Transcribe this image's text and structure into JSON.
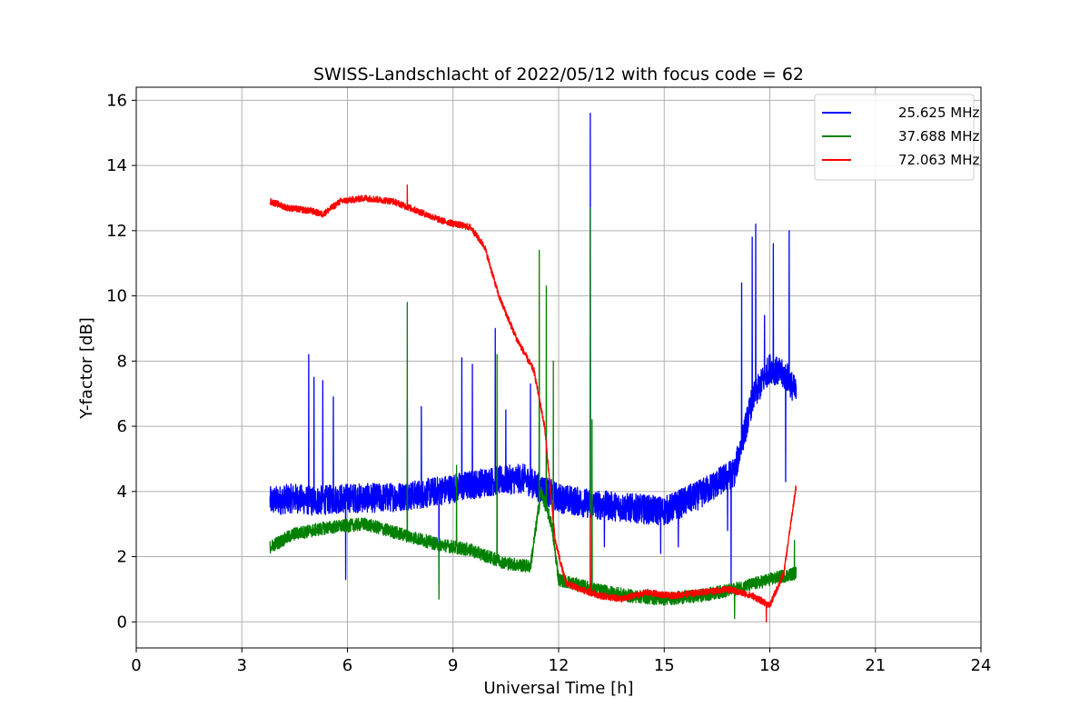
{
  "chart_data": {
    "type": "line",
    "title": "SWISS-Landschlacht of 2022/05/12 with focus code = 62",
    "xlabel": "Universal Time [h]",
    "ylabel": "Y-factor [dB]",
    "xlim": [
      0,
      24
    ],
    "ylim": [
      -0.8,
      16.4
    ],
    "xticks": [
      0,
      3,
      6,
      9,
      12,
      15,
      18,
      21,
      24
    ],
    "yticks": [
      0,
      2,
      4,
      6,
      8,
      10,
      12,
      14,
      16
    ],
    "grid": true,
    "legend_position": "top-right",
    "series": [
      {
        "name": "25.625 MHz",
        "color": "#0000ff",
        "base": [
          [
            3.8,
            3.7
          ],
          [
            4.5,
            3.8
          ],
          [
            5.0,
            3.7
          ],
          [
            6.0,
            3.8
          ],
          [
            7.0,
            3.8
          ],
          [
            8.0,
            3.9
          ],
          [
            9.0,
            4.1
          ],
          [
            10.0,
            4.3
          ],
          [
            11.0,
            4.4
          ],
          [
            12.0,
            3.8
          ],
          [
            13.0,
            3.6
          ],
          [
            14.0,
            3.5
          ],
          [
            15.0,
            3.4
          ],
          [
            16.0,
            3.9
          ],
          [
            17.0,
            4.6
          ],
          [
            17.5,
            6.8
          ],
          [
            18.0,
            7.8
          ],
          [
            18.5,
            7.5
          ],
          [
            18.75,
            7.0
          ]
        ],
        "spikes": [
          [
            4.9,
            8.2
          ],
          [
            5.05,
            7.5
          ],
          [
            5.3,
            7.4
          ],
          [
            5.6,
            6.9
          ],
          [
            5.95,
            1.3
          ],
          [
            7.7,
            6.8
          ],
          [
            8.1,
            6.6
          ],
          [
            8.6,
            1.2
          ],
          [
            9.25,
            8.1
          ],
          [
            9.55,
            7.9
          ],
          [
            10.2,
            9.0
          ],
          [
            10.5,
            6.5
          ],
          [
            11.2,
            7.3
          ],
          [
            11.45,
            6.5
          ],
          [
            12.9,
            15.6
          ],
          [
            13.3,
            2.3
          ],
          [
            14.9,
            2.1
          ],
          [
            15.4,
            2.3
          ],
          [
            16.8,
            2.8
          ],
          [
            16.9,
            1.0
          ],
          [
            17.2,
            10.4
          ],
          [
            17.5,
            11.8
          ],
          [
            17.6,
            12.2
          ],
          [
            17.85,
            9.4
          ],
          [
            18.1,
            11.6
          ],
          [
            18.55,
            12.0
          ],
          [
            18.45,
            4.3
          ]
        ],
        "noise": 0.45
      },
      {
        "name": "37.688 MHz",
        "color": "#008000",
        "base": [
          [
            3.8,
            2.3
          ],
          [
            4.5,
            2.7
          ],
          [
            5.5,
            2.9
          ],
          [
            6.5,
            3.0
          ],
          [
            7.5,
            2.7
          ],
          [
            8.5,
            2.4
          ],
          [
            9.5,
            2.2
          ],
          [
            10.5,
            1.8
          ],
          [
            11.2,
            1.7
          ],
          [
            11.5,
            4.0
          ],
          [
            11.8,
            3.0
          ],
          [
            12.0,
            1.3
          ],
          [
            13.0,
            1.0
          ],
          [
            14.0,
            0.8
          ],
          [
            15.0,
            0.7
          ],
          [
            16.0,
            0.8
          ],
          [
            17.0,
            1.0
          ],
          [
            18.0,
            1.3
          ],
          [
            18.75,
            1.5
          ]
        ],
        "spikes": [
          [
            7.7,
            9.8
          ],
          [
            8.6,
            0.7
          ],
          [
            9.1,
            4.8
          ],
          [
            10.25,
            8.2
          ],
          [
            11.45,
            11.4
          ],
          [
            11.65,
            10.3
          ],
          [
            11.85,
            8.0
          ],
          [
            12.9,
            12.7
          ],
          [
            12.95,
            6.2
          ],
          [
            17.0,
            0.1
          ],
          [
            18.7,
            2.5
          ]
        ],
        "noise": 0.2
      },
      {
        "name": "72.063 MHz",
        "color": "#ff0000",
        "base": [
          [
            3.8,
            12.9
          ],
          [
            4.3,
            12.7
          ],
          [
            5.0,
            12.6
          ],
          [
            5.3,
            12.5
          ],
          [
            5.8,
            12.9
          ],
          [
            6.5,
            13.0
          ],
          [
            7.3,
            12.9
          ],
          [
            8.0,
            12.6
          ],
          [
            8.7,
            12.3
          ],
          [
            9.5,
            12.1
          ],
          [
            9.9,
            11.5
          ],
          [
            10.3,
            10.0
          ],
          [
            10.8,
            8.7
          ],
          [
            11.3,
            7.7
          ],
          [
            11.6,
            6.0
          ],
          [
            11.9,
            2.5
          ],
          [
            12.2,
            1.2
          ],
          [
            12.6,
            1.0
          ],
          [
            13.2,
            0.8
          ],
          [
            13.8,
            0.7
          ],
          [
            14.5,
            0.9
          ],
          [
            15.2,
            0.8
          ],
          [
            16.0,
            0.9
          ],
          [
            16.8,
            1.0
          ],
          [
            17.5,
            0.8
          ],
          [
            18.0,
            0.5
          ],
          [
            18.4,
            1.5
          ],
          [
            18.75,
            4.2
          ]
        ],
        "spikes": [
          [
            7.7,
            13.4
          ],
          [
            12.9,
            3.3
          ],
          [
            17.9,
            0.0
          ]
        ],
        "noise": 0.1
      }
    ]
  }
}
